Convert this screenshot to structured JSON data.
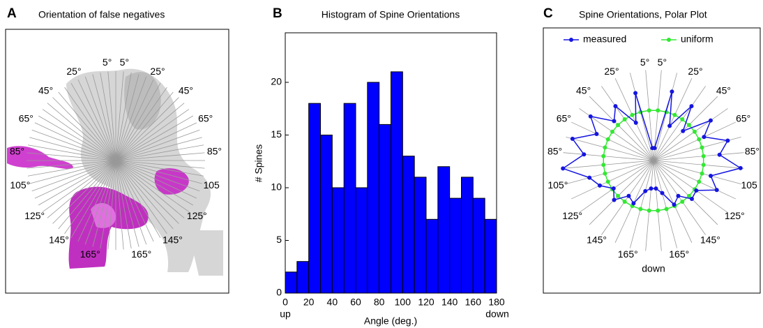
{
  "image_panel": {
    "panel_label": "A",
    "title": "Orientation of false negatives",
    "angle_labels": [
      {
        "value": 5,
        "label": "5°"
      },
      {
        "value": 25,
        "label": "25°"
      },
      {
        "value": 45,
        "label": "45°"
      },
      {
        "value": 65,
        "label": "65°"
      },
      {
        "value": 85,
        "label": "85°"
      },
      {
        "value": 105,
        "label": "105"
      },
      {
        "value": 125,
        "label": "125°"
      },
      {
        "value": 145,
        "label": "145°"
      },
      {
        "value": 165,
        "label": "165°"
      },
      {
        "value": 355,
        "label": "5°"
      },
      {
        "value": 335,
        "label": "25°"
      },
      {
        "value": 315,
        "label": "45°"
      },
      {
        "value": 295,
        "label": "65°"
      },
      {
        "value": 275,
        "label": "85°"
      },
      {
        "value": 255,
        "label": "105°"
      },
      {
        "value": 235,
        "label": "125°"
      },
      {
        "value": 215,
        "label": "145°"
      },
      {
        "value": 195,
        "label": "165°"
      }
    ]
  },
  "chart_data": [
    {
      "type": "histogram",
      "panel_label": "B",
      "title": "Histogram of Spine Orientations",
      "xlabel": "Angle (deg.)",
      "ylabel": "# Spines",
      "bins": [
        0,
        10,
        20,
        30,
        40,
        50,
        60,
        70,
        80,
        90,
        100,
        110,
        120,
        130,
        140,
        150,
        160,
        170,
        180
      ],
      "values": [
        2,
        3,
        18,
        15,
        10,
        18,
        10,
        20,
        16,
        21,
        13,
        11,
        7,
        12,
        9,
        11,
        9,
        7
      ],
      "color": "#0000ff",
      "xlim": [
        0,
        180
      ],
      "xticks": [
        0,
        20,
        40,
        60,
        80,
        100,
        120,
        140,
        160,
        180
      ],
      "ylim": [
        0,
        24.7
      ],
      "yticks": [
        0,
        5,
        10,
        15,
        20
      ],
      "annotations": [
        "up",
        "down"
      ]
    },
    {
      "type": "polar",
      "panel_label": "C",
      "title": "Spine Orientations, Polar Plot",
      "x": [
        5,
        15,
        25,
        35,
        45,
        55,
        65,
        75,
        85,
        95,
        105,
        115,
        125,
        135,
        145,
        155,
        165,
        175,
        185,
        195,
        205,
        215,
        225,
        235,
        245,
        255,
        265,
        275,
        285,
        295,
        305,
        315,
        325,
        335,
        345,
        355
      ],
      "rlim": [
        0,
        20
      ],
      "series": [
        {
          "name": "measured",
          "color": "#1515e0",
          "values": [
            2.5,
            14.2,
            7.6,
            13.2,
            8.3,
            13.9,
            11.1,
            15.3,
            13.2,
            17.4,
            11.8,
            13.9,
            10.4,
            10.8,
            8.6,
            9.7,
            6.7,
            5.6,
            5.6,
            6.3,
            9.4,
            8.6,
            11.1,
            9.7,
            11.8,
            13.2,
            18.1,
            13.9,
            16.7,
            12.5,
            15.3,
            11.1,
            13.2,
            8.3,
            13.9,
            2.5
          ]
        },
        {
          "name": "uniform",
          "color": "#33e833",
          "values": [
            10,
            10,
            10,
            10,
            10,
            10,
            10,
            10,
            10,
            10,
            10,
            10,
            10,
            10,
            10,
            10,
            10,
            10,
            10,
            10,
            10,
            10,
            10,
            10,
            10,
            10,
            10,
            10,
            10,
            10,
            10,
            10,
            10,
            10,
            10,
            10
          ]
        }
      ],
      "thetaticks": [
        {
          "value": 5,
          "label": "5°"
        },
        {
          "value": 25,
          "label": "25°"
        },
        {
          "value": 45,
          "label": "45°"
        },
        {
          "value": 65,
          "label": "65°"
        },
        {
          "value": 85,
          "label": "85°"
        },
        {
          "value": 105,
          "label": "105"
        },
        {
          "value": 125,
          "label": "125°"
        },
        {
          "value": 145,
          "label": "145°"
        },
        {
          "value": 165,
          "label": "165°"
        },
        {
          "value": 355,
          "label": "5°"
        },
        {
          "value": 335,
          "label": "25°"
        },
        {
          "value": 315,
          "label": "45°"
        },
        {
          "value": 295,
          "label": "65°"
        },
        {
          "value": 275,
          "label": "85°"
        },
        {
          "value": 255,
          "label": "105°"
        },
        {
          "value": 235,
          "label": "125°"
        },
        {
          "value": 215,
          "label": "145°"
        },
        {
          "value": 195,
          "label": "165°"
        }
      ],
      "annotation": "down"
    }
  ]
}
